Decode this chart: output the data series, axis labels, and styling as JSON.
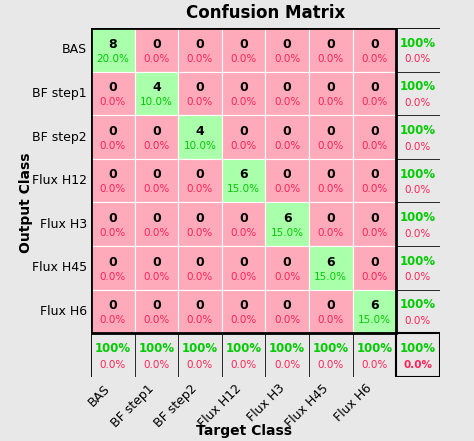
{
  "title": "Confusion Matrix",
  "xlabel": "Target Class",
  "ylabel": "Output Class",
  "classes": [
    "BAS",
    "BF step1",
    "BF step2",
    "Flux H12",
    "Flux H3",
    "Flux H45",
    "Flux H6"
  ],
  "matrix": [
    [
      8,
      0,
      0,
      0,
      0,
      0,
      0
    ],
    [
      0,
      4,
      0,
      0,
      0,
      0,
      0
    ],
    [
      0,
      0,
      4,
      0,
      0,
      0,
      0
    ],
    [
      0,
      0,
      0,
      6,
      0,
      0,
      0
    ],
    [
      0,
      0,
      0,
      0,
      6,
      0,
      0
    ],
    [
      0,
      0,
      0,
      0,
      0,
      6,
      0
    ],
    [
      0,
      0,
      0,
      0,
      0,
      0,
      6
    ]
  ],
  "count_pct": [
    [
      "20.0%",
      "0.0%",
      "0.0%",
      "0.0%",
      "0.0%",
      "0.0%",
      "0.0%"
    ],
    [
      "0.0%",
      "10.0%",
      "0.0%",
      "0.0%",
      "0.0%",
      "0.0%",
      "0.0%"
    ],
    [
      "0.0%",
      "0.0%",
      "10.0%",
      "0.0%",
      "0.0%",
      "0.0%",
      "0.0%"
    ],
    [
      "0.0%",
      "0.0%",
      "0.0%",
      "15.0%",
      "0.0%",
      "0.0%",
      "0.0%"
    ],
    [
      "0.0%",
      "0.0%",
      "0.0%",
      "0.0%",
      "15.0%",
      "0.0%",
      "0.0%"
    ],
    [
      "0.0%",
      "0.0%",
      "0.0%",
      "0.0%",
      "0.0%",
      "15.0%",
      "0.0%"
    ],
    [
      "0.0%",
      "0.0%",
      "0.0%",
      "0.0%",
      "0.0%",
      "0.0%",
      "15.0%"
    ]
  ],
  "row_pct_top": [
    "100%",
    "100%",
    "100%",
    "100%",
    "100%",
    "100%",
    "100%"
  ],
  "row_pct_bot": [
    "0.0%",
    "0.0%",
    "0.0%",
    "0.0%",
    "0.0%",
    "0.0%",
    "0.0%"
  ],
  "col_pct_top": [
    "100%",
    "100%",
    "100%",
    "100%",
    "100%",
    "100%",
    "100%"
  ],
  "col_pct_bot": [
    "0.0%",
    "0.0%",
    "0.0%",
    "0.0%",
    "0.0%",
    "0.0%",
    "0.0%"
  ],
  "corner_top": "100%",
  "corner_bot": "0.0%",
  "color_correct": "#aaffaa",
  "color_wrong": "#ffaabb",
  "color_summary_bg": "#e8e8e8",
  "text_green": "#00cc00",
  "text_red": "#ff2255",
  "text_black": "#000000",
  "bg_color": "#e8e8e8",
  "title_fontsize": 12,
  "label_fontsize": 9,
  "cell_count_fontsize": 9,
  "cell_pct_fontsize": 7.5
}
